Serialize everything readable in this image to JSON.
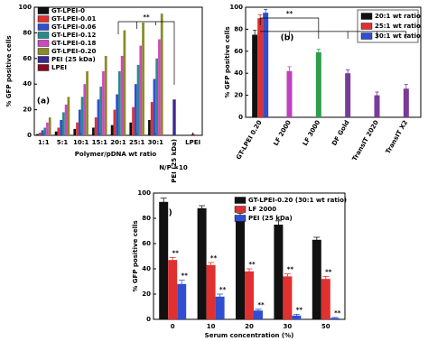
{
  "chart_data": [
    {
      "type": "bar",
      "panel_label": "(a)",
      "ylabel": "% GFP positive cells",
      "xlabel": "Polymer/pDNA wt ratio",
      "note": "N/P =10",
      "significance": "**",
      "categories": [
        "1:1",
        "5:1",
        "10:1",
        "15:1",
        "20:1",
        "25:1",
        "30:1",
        "PEI (25 kDa)",
        "LPEI"
      ],
      "series": [
        {
          "name": "GT-LPEI-0",
          "color": "#111111",
          "values": [
            1,
            3,
            5,
            6,
            8,
            10,
            12,
            null,
            null
          ]
        },
        {
          "name": "GT-LPEI-0.01",
          "color": "#e03030",
          "values": [
            2,
            6,
            10,
            14,
            20,
            22,
            26,
            null,
            null
          ]
        },
        {
          "name": "GT-LPEI-0.06",
          "color": "#2f4fd0",
          "values": [
            4,
            12,
            20,
            28,
            32,
            40,
            44,
            null,
            null
          ]
        },
        {
          "name": "GT-LPEI-0.12",
          "color": "#2a8a8a",
          "values": [
            6,
            18,
            30,
            38,
            50,
            55,
            60,
            null,
            null
          ]
        },
        {
          "name": "GT-LPEI-0.18",
          "color": "#d048c0",
          "values": [
            10,
            24,
            40,
            50,
            62,
            70,
            75,
            null,
            null
          ]
        },
        {
          "name": "GT-LPEI-0.20",
          "color": "#8a8a2a",
          "values": [
            14,
            30,
            50,
            62,
            82,
            88,
            95,
            null,
            null
          ]
        },
        {
          "name": "PEI (25 kDa)",
          "color": "#3a2a90",
          "values": [
            null,
            null,
            null,
            null,
            null,
            null,
            null,
            28,
            null
          ]
        },
        {
          "name": "LPEI",
          "color": "#8a0a20",
          "values": [
            null,
            null,
            null,
            null,
            null,
            null,
            null,
            null,
            1
          ]
        }
      ],
      "ylim": [
        0,
        100
      ],
      "yticks": [
        0,
        20,
        40,
        60,
        80,
        100
      ],
      "legend": "upper left"
    },
    {
      "type": "bar",
      "panel_label": "(b)",
      "ylabel": "% GFP positive cells",
      "significance": "**",
      "categories": [
        "GT-LPEI 0.20",
        "LF 2000",
        "LF 3000",
        "DF Gold",
        "TransIT 2020",
        "TransIT X2"
      ],
      "series": [
        {
          "name": "20:1 wt ratio",
          "color": "#111111",
          "values": [
            75,
            null,
            null,
            null,
            null,
            null
          ],
          "errors": [
            4,
            null,
            null,
            null,
            null,
            null
          ]
        },
        {
          "name": "25:1 wt ratio",
          "color": "#e03030",
          "values": [
            90,
            null,
            null,
            null,
            null,
            null
          ],
          "errors": [
            3,
            null,
            null,
            null,
            null,
            null
          ]
        },
        {
          "name": "30:1 wt ratio",
          "color": "#2f4fd0",
          "values": [
            95,
            null,
            null,
            null,
            null,
            null
          ],
          "errors": [
            3,
            null,
            null,
            null,
            null,
            null
          ]
        },
        {
          "colors": [
            null,
            "#c040c0",
            "#2e9e4a",
            "#7a3a98",
            "#7a3a98",
            "#7a3a98"
          ],
          "values": [
            null,
            42,
            59,
            40,
            20,
            26
          ],
          "errors": [
            null,
            4,
            3,
            3,
            3,
            4
          ]
        }
      ],
      "ylim": [
        0,
        100
      ],
      "yticks": [
        0,
        20,
        40,
        60,
        80,
        100
      ],
      "legend": "upper right"
    },
    {
      "type": "bar",
      "panel_label": "(c)",
      "ylabel": "% GFP positive cells",
      "xlabel": "Serum concentration (%)",
      "categories": [
        "0",
        "10",
        "20",
        "30",
        "50"
      ],
      "series": [
        {
          "name": "GT-LPEI-0.20 (30:1 wt ratio)",
          "color": "#111111",
          "values": [
            93,
            88,
            82,
            75,
            63
          ],
          "errors": [
            3,
            2,
            2,
            3,
            2
          ]
        },
        {
          "name": "LF 2000",
          "color": "#e03030",
          "values": [
            47,
            43,
            38,
            34,
            32
          ],
          "errors": [
            2,
            2,
            2,
            2,
            2
          ],
          "significance_labels": [
            "**",
            "**",
            "**",
            "**",
            "**"
          ]
        },
        {
          "name": "PEI (25 kDa)",
          "color": "#2f4fd0",
          "values": [
            28,
            18,
            7,
            3,
            1
          ],
          "errors": [
            3,
            2,
            1,
            1,
            0.5
          ],
          "significance_labels": [
            "**",
            "**",
            "**",
            "**",
            "**"
          ]
        }
      ],
      "ylim": [
        0,
        100
      ],
      "yticks": [
        0,
        20,
        40,
        60,
        80,
        100
      ],
      "legend": "upper right"
    }
  ]
}
